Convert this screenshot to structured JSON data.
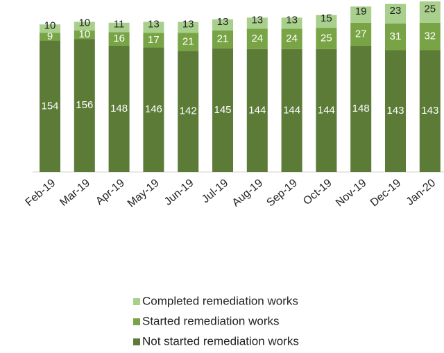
{
  "chart_data": {
    "type": "stacked-bar",
    "categories": [
      "Feb-19",
      "Mar-19",
      "Apr-19",
      "May-19",
      "Jun-19",
      "Jul-19",
      "Aug-19",
      "Sep-19",
      "Oct-19",
      "Nov-19",
      "Dec-19",
      "Jan-20"
    ],
    "series": [
      {
        "name": "Not started remediation works",
        "color": "#5c7b37",
        "values": [
          154,
          156,
          148,
          146,
          142,
          145,
          144,
          144,
          144,
          148,
          143,
          143
        ]
      },
      {
        "name": "Started remediation works",
        "color": "#78a445",
        "values": [
          9,
          10,
          16,
          17,
          21,
          21,
          24,
          24,
          25,
          27,
          31,
          32
        ]
      },
      {
        "name": "Completed remediation works",
        "color": "#a8d08c",
        "values": [
          10,
          10,
          11,
          13,
          13,
          13,
          13,
          13,
          15,
          19,
          23,
          25
        ]
      }
    ]
  }
}
